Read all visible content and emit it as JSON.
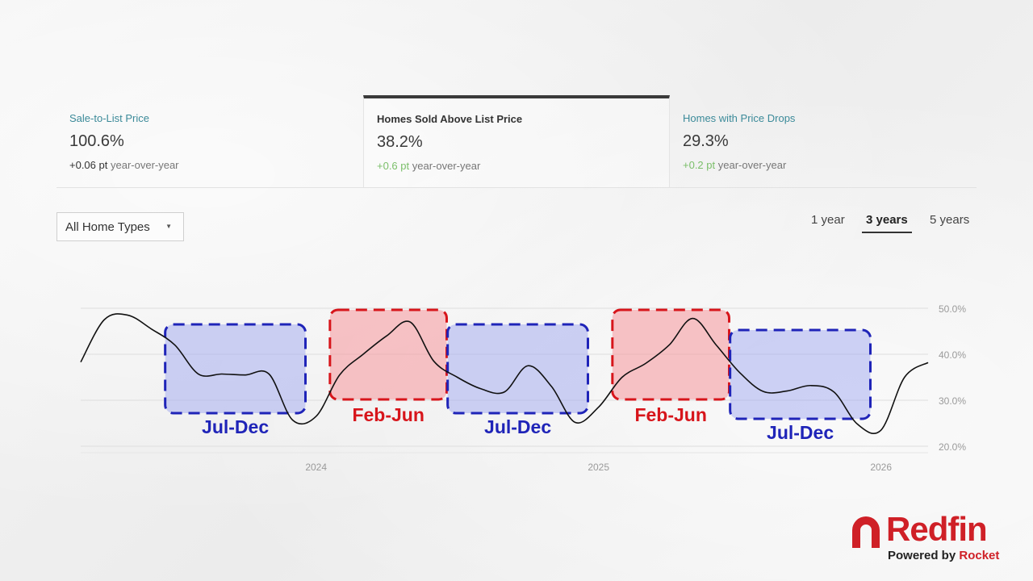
{
  "metrics": [
    {
      "label": "Sale-to-List Price",
      "value": "100.6%",
      "delta": "+0.06 pt",
      "delta_suffix": "year-over-year"
    },
    {
      "label": "Homes Sold Above List Price",
      "value": "38.2%",
      "delta": "+0.6 pt",
      "delta_suffix": "year-over-year"
    },
    {
      "label": "Homes with Price Drops",
      "value": "29.3%",
      "delta": "+0.2 pt",
      "delta_suffix": "year-over-year"
    }
  ],
  "filter": {
    "label": "All Home Types"
  },
  "ranges": [
    "1 year",
    "3 years",
    "5 years"
  ],
  "selected_range": "3 years",
  "selected_metric": "Homes Sold Above List Price",
  "colors": {
    "highlight_blue": "#1f24b8",
    "highlight_red": "#d7151b",
    "line": "#111111",
    "metric_label": "#3b8a99",
    "delta_positive": "#7bbf6a"
  },
  "chart_data": {
    "type": "line",
    "x_tick_labels": [
      "2024",
      "2025",
      "2026"
    ],
    "y_tick_labels": [
      "50.0%",
      "40.0%",
      "30.0%",
      "20.0%"
    ],
    "ylim": [
      20,
      50
    ],
    "xlim": [
      "2023-03",
      "2026-03"
    ],
    "grid": true,
    "series": [
      {
        "x": [
          "2023-03",
          "2023-04",
          "2023-05",
          "2023-06",
          "2023-07",
          "2023-08",
          "2023-09",
          "2023-10",
          "2023-11",
          "2023-12",
          "2024-01",
          "2024-02",
          "2024-03",
          "2024-04",
          "2024-05",
          "2024-06",
          "2024-07",
          "2024-08",
          "2024-09",
          "2024-10",
          "2024-11",
          "2024-12",
          "2025-01",
          "2025-02",
          "2025-03",
          "2025-04",
          "2025-05",
          "2025-06",
          "2025-07",
          "2025-08",
          "2025-09",
          "2025-10",
          "2025-11",
          "2025-12",
          "2026-01",
          "2026-02",
          "2026-03"
        ],
        "values": [
          38.3,
          47.5,
          48.5,
          45.5,
          42,
          35.7,
          35.7,
          35.5,
          35.7,
          25.7,
          26.5,
          35.5,
          40,
          44,
          47,
          38.5,
          35,
          32.5,
          31.8,
          37.5,
          33,
          25.2,
          28.5,
          35,
          38,
          42,
          47.8,
          42,
          36,
          31.9,
          32,
          33.2,
          31.8,
          24.8,
          23.5,
          35,
          38.2
        ]
      }
    ],
    "annotations": [
      {
        "label": "Jul-Dec",
        "color": "blue",
        "from": "2023-07",
        "to": "2023-12"
      },
      {
        "label": "Feb-Jun",
        "color": "red",
        "from": "2024-02",
        "to": "2024-06"
      },
      {
        "label": "Jul-Dec",
        "color": "blue",
        "from": "2024-07",
        "to": "2024-12"
      },
      {
        "label": "Feb-Jun",
        "color": "red",
        "from": "2025-02",
        "to": "2025-06"
      },
      {
        "label": "Jul-Dec",
        "color": "blue",
        "from": "2025-07",
        "to": "2025-12"
      }
    ]
  },
  "logo": {
    "wordmark": "Redfin",
    "powered_prefix": "Powered by",
    "powered_brand": "Rocket"
  }
}
